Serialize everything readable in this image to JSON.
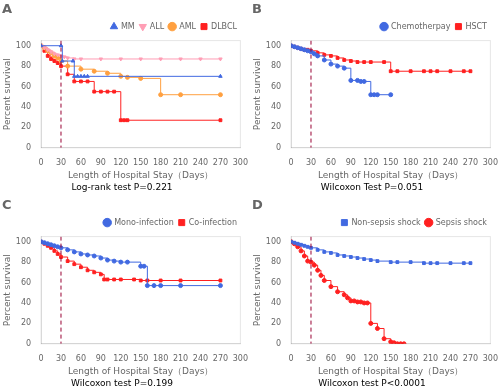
{
  "chart_data": [
    {
      "type": "step",
      "title": "A",
      "xlabel": "Length of Hospital Stay（Days）",
      "ylabel": "Percent survival",
      "annotation": "Log-rank test P=0.221",
      "vline": {
        "value": 30,
        "color": "#990033",
        "line_style": "dashed"
      },
      "xlim": [
        0,
        300
      ],
      "ylim": [
        0,
        105
      ],
      "xticks": [
        0,
        30,
        60,
        90,
        120,
        150,
        180,
        210,
        240,
        270,
        300
      ],
      "yticks": [
        0,
        20,
        40,
        60,
        80,
        100
      ],
      "grid": false,
      "legend": "upper right",
      "series": [
        {
          "name": "MM",
          "color": "#4169E1",
          "marker": "triangle_up",
          "x": [
            0,
            30,
            32,
            48,
            50,
            55,
            60,
            65,
            70,
            270
          ],
          "values": [
            100,
            100,
            85,
            85,
            70,
            70,
            70,
            70,
            70,
            70
          ]
        },
        {
          "name": "ALL",
          "color": "#FF9EB5",
          "marker": "triangle_down",
          "x": [
            0,
            5,
            10,
            15,
            20,
            25,
            30,
            35,
            40,
            50,
            60,
            90,
            120,
            150,
            180,
            210,
            240,
            270
          ],
          "values": [
            100,
            98,
            96,
            94,
            92,
            91,
            90,
            89,
            88,
            87,
            87,
            87,
            87,
            87,
            87,
            87,
            87,
            87
          ]
        },
        {
          "name": "AML",
          "color": "#FFA040",
          "marker": "circle",
          "x": [
            0,
            5,
            10,
            15,
            20,
            25,
            30,
            40,
            60,
            80,
            100,
            120,
            130,
            150,
            180,
            210,
            270
          ],
          "values": [
            100,
            98,
            95,
            93,
            90,
            88,
            85,
            80,
            77,
            75,
            73,
            70,
            69,
            68,
            52,
            52,
            52
          ]
        },
        {
          "name": "DLBCL",
          "color": "#FF2020",
          "marker": "square",
          "x": [
            0,
            5,
            10,
            15,
            20,
            25,
            30,
            40,
            50,
            60,
            70,
            80,
            90,
            100,
            110,
            120,
            125,
            130,
            270
          ],
          "values": [
            100,
            95,
            90,
            87,
            85,
            83,
            80,
            72,
            65,
            65,
            65,
            55,
            55,
            55,
            55,
            27,
            27,
            27,
            27
          ]
        }
      ]
    },
    {
      "type": "step",
      "title": "B",
      "xlabel": "Length of Hospital Stay（Days）",
      "ylabel": "Percent survival",
      "annotation": "Wilcoxon Test P=0.051",
      "vline": {
        "value": 30,
        "color": "#990033",
        "line_style": "dashed"
      },
      "xlim": [
        0,
        300
      ],
      "ylim": [
        0,
        105
      ],
      "xticks": [
        0,
        30,
        60,
        90,
        120,
        150,
        180,
        210,
        240,
        270,
        300
      ],
      "yticks": [
        0,
        20,
        40,
        60,
        80,
        100
      ],
      "grid": false,
      "legend": "upper right",
      "series": [
        {
          "name": "Chemotherpay",
          "color": "#4169E1",
          "marker": "circle",
          "x": [
            0,
            5,
            10,
            15,
            20,
            25,
            30,
            35,
            40,
            50,
            60,
            70,
            80,
            90,
            100,
            105,
            110,
            120,
            125,
            130,
            150
          ],
          "values": [
            100,
            99,
            98,
            97,
            96,
            95,
            94,
            92,
            90,
            86,
            82,
            80,
            78,
            66,
            66,
            65,
            65,
            52,
            52,
            52,
            52
          ]
        },
        {
          "name": "HSCT",
          "color": "#FF2020",
          "marker": "square",
          "x": [
            0,
            5,
            10,
            15,
            20,
            25,
            30,
            40,
            50,
            60,
            70,
            80,
            90,
            100,
            110,
            120,
            140,
            150,
            160,
            180,
            200,
            210,
            220,
            240,
            260,
            270
          ],
          "values": [
            100,
            99,
            98,
            97,
            96,
            96,
            95,
            93,
            91,
            90,
            88,
            86,
            85,
            84,
            84,
            84,
            84,
            75,
            75,
            75,
            75,
            75,
            75,
            75,
            75,
            75
          ]
        }
      ]
    },
    {
      "type": "step",
      "title": "C",
      "xlabel": "Length of Hospital Stay（Days）",
      "ylabel": "Percent survival",
      "annotation": "Wilcoxon test P=0.199",
      "vline": {
        "value": 30,
        "color": "#990033",
        "line_style": "dashed"
      },
      "xlim": [
        0,
        300
      ],
      "ylim": [
        0,
        105
      ],
      "xticks": [
        0,
        30,
        60,
        90,
        120,
        150,
        180,
        210,
        240,
        270,
        300
      ],
      "yticks": [
        0,
        20,
        40,
        60,
        80,
        100
      ],
      "grid": false,
      "legend": "upper right",
      "series": [
        {
          "name": "Mono-infection",
          "color": "#4169E1",
          "marker": "circle",
          "x": [
            0,
            5,
            10,
            15,
            20,
            25,
            30,
            40,
            50,
            60,
            70,
            80,
            90,
            100,
            110,
            120,
            130,
            150,
            155,
            160,
            170,
            180,
            210,
            270
          ],
          "values": [
            100,
            99,
            98,
            97,
            96,
            95,
            94,
            92,
            90,
            88,
            87,
            86,
            84,
            82,
            81,
            80,
            80,
            76,
            76,
            57,
            57,
            57,
            57,
            57
          ]
        },
        {
          "name": "Co-infection",
          "color": "#FF2020",
          "marker": "square",
          "x": [
            0,
            5,
            10,
            15,
            20,
            25,
            30,
            40,
            50,
            60,
            70,
            80,
            90,
            95,
            100,
            110,
            120,
            140,
            150,
            160,
            180,
            210,
            270
          ],
          "values": [
            100,
            98,
            96,
            94,
            91,
            88,
            85,
            81,
            78,
            75,
            72,
            70,
            68,
            63,
            63,
            63,
            63,
            63,
            62,
            62,
            62,
            62,
            62
          ]
        }
      ]
    },
    {
      "type": "step",
      "title": "D",
      "xlabel": "Length of Hospital Stay（Days）",
      "ylabel": "Percent survival",
      "annotation": "Wilcoxon test P<0.0001",
      "vline": {
        "value": 30,
        "color": "#990033",
        "line_style": "dashed"
      },
      "xlim": [
        0,
        300
      ],
      "ylim": [
        0,
        105
      ],
      "xticks": [
        0,
        30,
        60,
        90,
        120,
        150,
        180,
        210,
        240,
        270,
        300
      ],
      "yticks": [
        0,
        20,
        40,
        60,
        80,
        100
      ],
      "grid": false,
      "legend": "upper right",
      "series": [
        {
          "name": "Non-sepsis shock",
          "color": "#4169E1",
          "marker": "square",
          "x": [
            0,
            5,
            10,
            15,
            20,
            25,
            30,
            40,
            50,
            60,
            70,
            80,
            90,
            100,
            110,
            120,
            130,
            150,
            160,
            180,
            200,
            210,
            220,
            240,
            260,
            270
          ],
          "values": [
            100,
            99,
            98,
            97,
            96,
            95,
            94,
            92,
            90,
            89,
            87,
            86,
            85,
            84,
            83,
            82,
            81,
            80,
            80,
            80,
            79,
            79,
            79,
            79,
            79,
            79
          ]
        },
        {
          "name": "Sepsis shock",
          "color": "#FF2020",
          "marker": "circle",
          "x": [
            0,
            5,
            10,
            15,
            20,
            25,
            30,
            35,
            40,
            45,
            50,
            60,
            70,
            80,
            85,
            90,
            95,
            100,
            105,
            110,
            115,
            120,
            130,
            140,
            150,
            155,
            160,
            165,
            170
          ],
          "values": [
            100,
            98,
            95,
            91,
            86,
            81,
            80,
            77,
            72,
            67,
            62,
            56,
            51,
            48,
            45,
            42,
            42,
            41,
            41,
            40,
            40,
            20,
            15,
            5,
            2,
            1,
            0,
            0,
            0
          ]
        }
      ]
    }
  ]
}
